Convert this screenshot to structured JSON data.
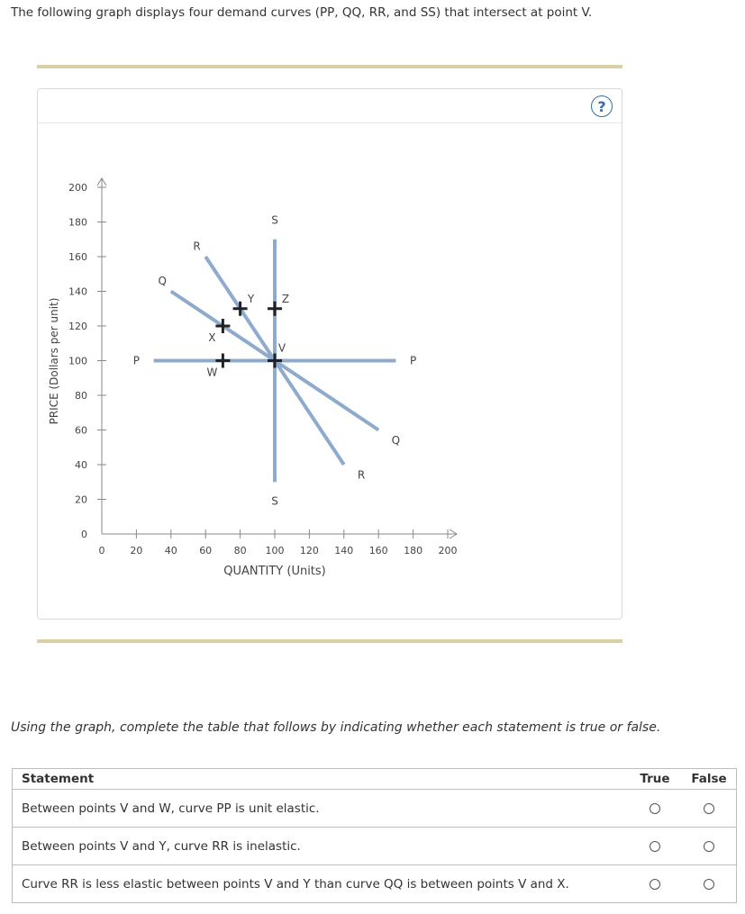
{
  "intro": "The following graph displays four demand curves (PP, QQ, RR, and SS) that intersect at point V.",
  "help_label": "?",
  "chart_data": {
    "type": "line",
    "xlabel": "QUANTITY (Units)",
    "ylabel": "PRICE (Dollars per unit)",
    "xlim": [
      0,
      200
    ],
    "ylim": [
      0,
      200
    ],
    "x_ticks": [
      0,
      20,
      40,
      60,
      80,
      100,
      120,
      140,
      160,
      180,
      200
    ],
    "y_ticks": [
      0,
      20,
      40,
      60,
      80,
      100,
      120,
      140,
      160,
      180,
      200
    ],
    "grid": false,
    "line_color": "#8eaacd",
    "series": [
      {
        "name": "P",
        "points": [
          [
            30,
            100
          ],
          [
            170,
            100
          ]
        ]
      },
      {
        "name": "Q",
        "points": [
          [
            40,
            140
          ],
          [
            160,
            60
          ]
        ]
      },
      {
        "name": "R",
        "points": [
          [
            60,
            160
          ],
          [
            140,
            40
          ]
        ]
      },
      {
        "name": "S",
        "points": [
          [
            100,
            170
          ],
          [
            100,
            30
          ]
        ]
      }
    ],
    "curve_labels": [
      {
        "text": "P",
        "x": 20,
        "y": 100
      },
      {
        "text": "P",
        "x": 180,
        "y": 100
      },
      {
        "text": "Q",
        "x": 35,
        "y": 146
      },
      {
        "text": "Q",
        "x": 170,
        "y": 54
      },
      {
        "text": "R",
        "x": 55,
        "y": 166
      },
      {
        "text": "R",
        "x": 150,
        "y": 34
      },
      {
        "text": "S",
        "x": 100,
        "y": 181
      },
      {
        "text": "S",
        "x": 100,
        "y": 19
      }
    ],
    "points": [
      {
        "name": "V",
        "x": 100,
        "y": 100,
        "label_dx": 8,
        "label_dy": -10
      },
      {
        "name": "W",
        "x": 70,
        "y": 100,
        "label_dx": -12,
        "label_dy": 17
      },
      {
        "name": "X",
        "x": 70,
        "y": 120,
        "label_dx": -12,
        "label_dy": 17
      },
      {
        "name": "Y",
        "x": 80,
        "y": 130,
        "label_dx": 12,
        "label_dy": -7
      },
      {
        "name": "Z",
        "x": 100,
        "y": 130,
        "label_dx": 12,
        "label_dy": -7
      }
    ]
  },
  "instructions": "Using the graph, complete the table that follows by indicating whether each statement is true or false.",
  "table": {
    "headers": {
      "statement": "Statement",
      "true": "True",
      "false": "False"
    },
    "rows": [
      "Between points V and W, curve PP is unit elastic.",
      "Between points V and Y, curve RR is inelastic.",
      "Curve RR is less elastic between points V and Y than curve QQ is between points V and X."
    ]
  }
}
